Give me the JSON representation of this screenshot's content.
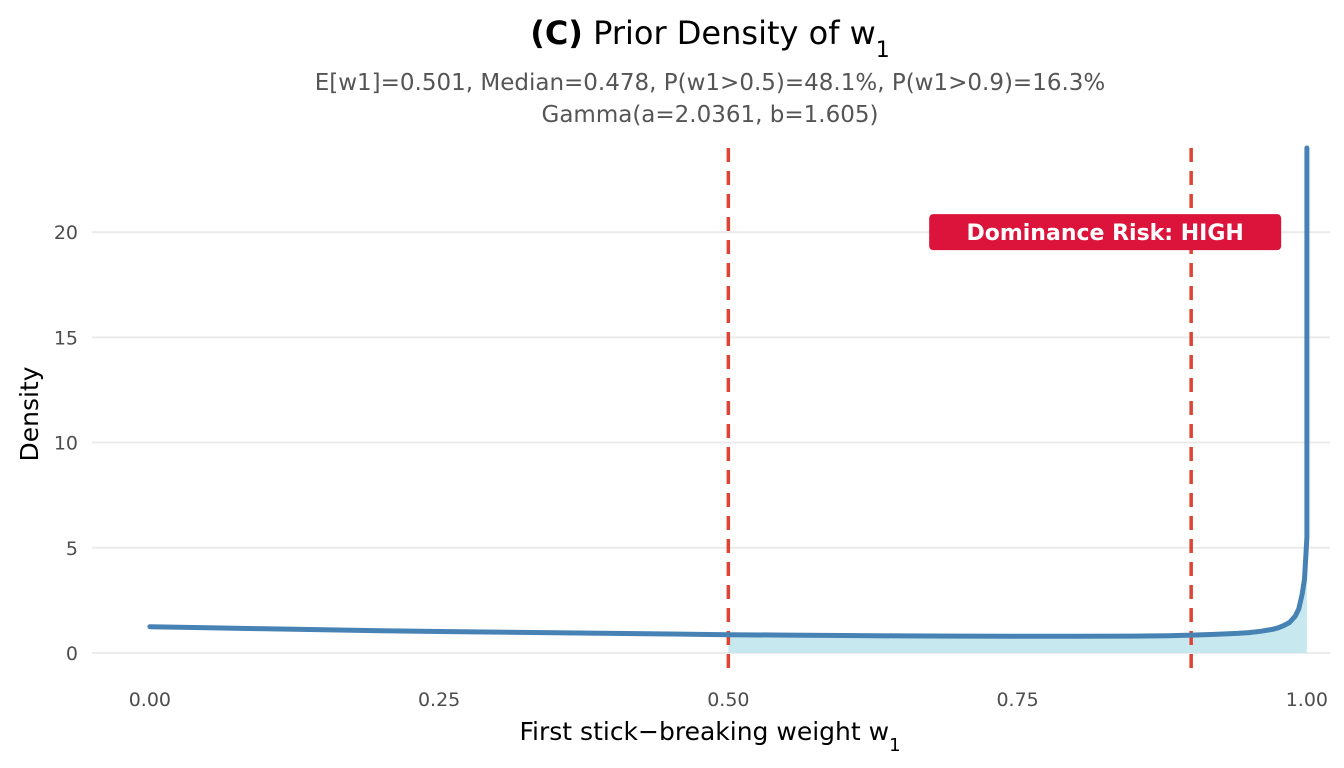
{
  "chart_data": {
    "type": "area",
    "title": {
      "prefix": "(C)",
      "text": "Prior Density of w",
      "subscript": "1"
    },
    "subtitle_lines": [
      "E[w1]=0.501,  Median=0.478,  P(w1>0.5)=48.1%,  P(w1>0.9)=16.3%",
      "Gamma(a=2.0361, b=1.605)"
    ],
    "xlabel": {
      "text": "First stick−breaking weight w",
      "subscript": "1"
    },
    "ylabel": "Density",
    "xlim": [
      -0.05,
      1.02
    ],
    "ylim": [
      -1.0,
      24.0
    ],
    "x_ticks": [
      0.0,
      0.25,
      0.5,
      0.75,
      1.0
    ],
    "x_tick_labels": [
      "0.00",
      "0.25",
      "0.50",
      "0.75",
      "1.00"
    ],
    "y_ticks": [
      0,
      5,
      10,
      15,
      20
    ],
    "y_tick_labels": [
      "0",
      "5",
      "10",
      "15",
      "20"
    ],
    "grid": "horizontal",
    "series": [
      {
        "x": [
          0.0,
          0.05,
          0.1,
          0.15,
          0.2,
          0.25,
          0.3,
          0.35,
          0.4,
          0.45,
          0.5,
          0.55,
          0.6,
          0.65,
          0.7,
          0.75,
          0.8,
          0.85,
          0.88,
          0.9,
          0.92,
          0.94,
          0.95,
          0.96,
          0.97,
          0.975,
          0.98,
          0.985,
          0.99,
          0.993,
          0.996,
          0.998,
          0.999,
          1.0,
          1.0
        ],
        "y": [
          1.25,
          1.2,
          1.15,
          1.1,
          1.06,
          1.02,
          0.99,
          0.96,
          0.93,
          0.9,
          0.87,
          0.85,
          0.83,
          0.81,
          0.8,
          0.79,
          0.79,
          0.8,
          0.82,
          0.85,
          0.88,
          0.93,
          0.97,
          1.03,
          1.12,
          1.19,
          1.3,
          1.45,
          1.75,
          2.1,
          2.8,
          3.5,
          4.5,
          5.5,
          24.0
        ]
      }
    ],
    "shaded_region": {
      "from": 0.5,
      "to": 1.0
    },
    "reference_lines": [
      0.5,
      0.9
    ],
    "annotation": {
      "text": "Dominance Risk: HIGH",
      "x": 0.9,
      "y": 20
    },
    "colors": {
      "line": "#4682b4",
      "fill": "#c6e8ee",
      "ref_line": "#dd4433",
      "badge": "#dc143c",
      "grid": "#ebebeb"
    }
  }
}
